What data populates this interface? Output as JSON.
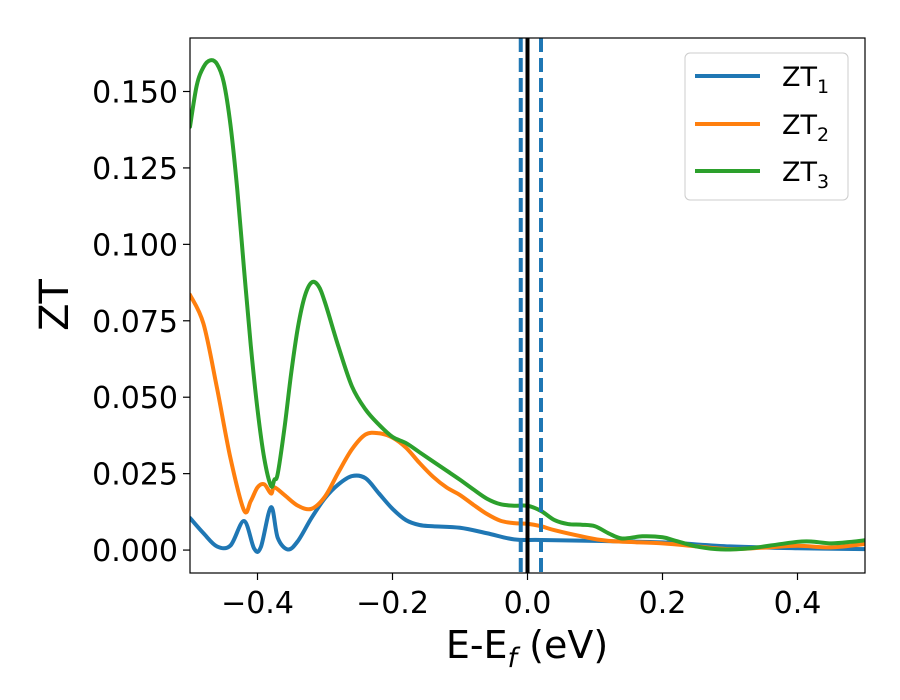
{
  "chart_data": {
    "type": "line",
    "xlabel": {
      "main": "E-E",
      "sub": "f",
      "rest": " (eV)"
    },
    "ylabel": "ZT",
    "xlim": [
      -0.5,
      0.5
    ],
    "ylim": [
      -0.0075,
      0.1675
    ],
    "xticks": [
      -0.4,
      -0.2,
      0.0,
      0.2,
      0.4
    ],
    "xtick_labels": [
      "−0.4",
      "−0.2",
      "0.0",
      "0.2",
      "0.4"
    ],
    "yticks": [
      0.0,
      0.025,
      0.05,
      0.075,
      0.1,
      0.125,
      0.15
    ],
    "ytick_labels": [
      "0.000",
      "0.025",
      "0.050",
      "0.075",
      "0.100",
      "0.125",
      "0.150"
    ],
    "grid": false,
    "legend_position": "top-right",
    "series": [
      {
        "name": {
          "main": "ZT",
          "sub": "1"
        },
        "color": "#1f77b4",
        "points": [
          [
            -0.5,
            0.0105
          ],
          [
            -0.48,
            0.0055
          ],
          [
            -0.46,
            0.0012
          ],
          [
            -0.44,
            0.0015
          ],
          [
            -0.42,
            0.0095
          ],
          [
            -0.405,
            0.0005
          ],
          [
            -0.395,
            0.001
          ],
          [
            -0.38,
            0.014
          ],
          [
            -0.37,
            0.004
          ],
          [
            -0.355,
            0.0002
          ],
          [
            -0.34,
            0.003
          ],
          [
            -0.32,
            0.0105
          ],
          [
            -0.3,
            0.017
          ],
          [
            -0.28,
            0.0215
          ],
          [
            -0.26,
            0.0242
          ],
          [
            -0.24,
            0.0235
          ],
          [
            -0.22,
            0.0185
          ],
          [
            -0.2,
            0.0135
          ],
          [
            -0.18,
            0.0098
          ],
          [
            -0.16,
            0.0082
          ],
          [
            -0.14,
            0.0078
          ],
          [
            -0.1,
            0.0073
          ],
          [
            -0.06,
            0.0055
          ],
          [
            -0.02,
            0.0035
          ],
          [
            0.02,
            0.0033
          ],
          [
            0.1,
            0.003
          ],
          [
            0.2,
            0.0025
          ],
          [
            0.3,
            0.0012
          ],
          [
            0.4,
            0.0006
          ],
          [
            0.5,
            0.0003
          ]
        ]
      },
      {
        "name": {
          "main": "ZT",
          "sub": "2"
        },
        "color": "#ff7f0e",
        "points": [
          [
            -0.5,
            0.0835
          ],
          [
            -0.48,
            0.074
          ],
          [
            -0.46,
            0.053
          ],
          [
            -0.44,
            0.03
          ],
          [
            -0.42,
            0.013
          ],
          [
            -0.41,
            0.016
          ],
          [
            -0.4,
            0.0205
          ],
          [
            -0.39,
            0.0215
          ],
          [
            -0.38,
            0.0185
          ],
          [
            -0.375,
            0.0205
          ],
          [
            -0.36,
            0.018
          ],
          [
            -0.34,
            0.0145
          ],
          [
            -0.32,
            0.0135
          ],
          [
            -0.3,
            0.0175
          ],
          [
            -0.28,
            0.0255
          ],
          [
            -0.26,
            0.033
          ],
          [
            -0.24,
            0.0378
          ],
          [
            -0.22,
            0.0382
          ],
          [
            -0.2,
            0.0368
          ],
          [
            -0.18,
            0.0335
          ],
          [
            -0.16,
            0.0285
          ],
          [
            -0.14,
            0.024
          ],
          [
            -0.12,
            0.0205
          ],
          [
            -0.1,
            0.018
          ],
          [
            -0.08,
            0.0148
          ],
          [
            -0.06,
            0.0118
          ],
          [
            -0.04,
            0.0096
          ],
          [
            -0.02,
            0.0088
          ],
          [
            0.0,
            0.0086
          ],
          [
            0.02,
            0.0078
          ],
          [
            0.04,
            0.0065
          ],
          [
            0.08,
            0.0045
          ],
          [
            0.12,
            0.003
          ],
          [
            0.2,
            0.0022
          ],
          [
            0.25,
            0.0012
          ],
          [
            0.3,
            0.0003
          ],
          [
            0.35,
            0.0008
          ],
          [
            0.4,
            0.0014
          ],
          [
            0.45,
            0.0009
          ],
          [
            0.5,
            0.002
          ]
        ]
      },
      {
        "name": {
          "main": "ZT",
          "sub": "3"
        },
        "color": "#2ca02c",
        "points": [
          [
            -0.5,
            0.1385
          ],
          [
            -0.49,
            0.152
          ],
          [
            -0.48,
            0.158
          ],
          [
            -0.47,
            0.1602
          ],
          [
            -0.46,
            0.159
          ],
          [
            -0.45,
            0.153
          ],
          [
            -0.44,
            0.139
          ],
          [
            -0.43,
            0.118
          ],
          [
            -0.42,
            0.092
          ],
          [
            -0.41,
            0.067
          ],
          [
            -0.4,
            0.046
          ],
          [
            -0.39,
            0.03
          ],
          [
            -0.38,
            0.021
          ],
          [
            -0.375,
            0.023
          ],
          [
            -0.37,
            0.025
          ],
          [
            -0.36,
            0.04
          ],
          [
            -0.35,
            0.058
          ],
          [
            -0.34,
            0.073
          ],
          [
            -0.33,
            0.083
          ],
          [
            -0.32,
            0.0875
          ],
          [
            -0.31,
            0.0865
          ],
          [
            -0.3,
            0.081
          ],
          [
            -0.28,
            0.0665
          ],
          [
            -0.26,
            0.0535
          ],
          [
            -0.24,
            0.046
          ],
          [
            -0.22,
            0.041
          ],
          [
            -0.2,
            0.037
          ],
          [
            -0.18,
            0.035
          ],
          [
            -0.16,
            0.032
          ],
          [
            -0.14,
            0.029
          ],
          [
            -0.12,
            0.026
          ],
          [
            -0.1,
            0.023
          ],
          [
            -0.08,
            0.0198
          ],
          [
            -0.06,
            0.0168
          ],
          [
            -0.04,
            0.015
          ],
          [
            -0.02,
            0.0145
          ],
          [
            0.0,
            0.0145
          ],
          [
            0.02,
            0.0128
          ],
          [
            0.04,
            0.0098
          ],
          [
            0.06,
            0.0085
          ],
          [
            0.08,
            0.0083
          ],
          [
            0.1,
            0.0078
          ],
          [
            0.12,
            0.0055
          ],
          [
            0.14,
            0.0038
          ],
          [
            0.17,
            0.0045
          ],
          [
            0.2,
            0.0042
          ],
          [
            0.22,
            0.003
          ],
          [
            0.25,
            0.0012
          ],
          [
            0.28,
            0.0003
          ],
          [
            0.3,
            0.0002
          ],
          [
            0.33,
            0.0006
          ],
          [
            0.37,
            0.0018
          ],
          [
            0.4,
            0.0027
          ],
          [
            0.42,
            0.0028
          ],
          [
            0.45,
            0.0022
          ],
          [
            0.48,
            0.0027
          ],
          [
            0.5,
            0.0032
          ]
        ]
      }
    ],
    "vlines": [
      {
        "x": 0.0,
        "color": "#000000",
        "style": "solid"
      },
      {
        "x": -0.01,
        "color": "#1f77b4",
        "style": "dashed"
      },
      {
        "x": 0.02,
        "color": "#1f77b4",
        "style": "dashed"
      }
    ]
  }
}
